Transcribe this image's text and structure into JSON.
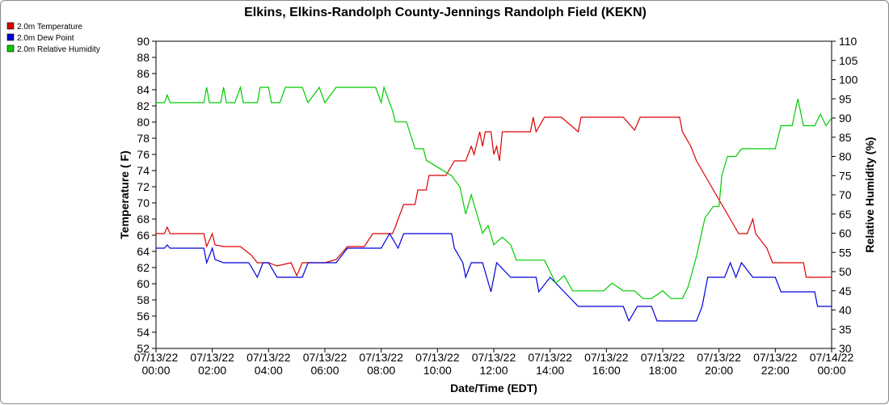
{
  "chart_data": {
    "type": "line",
    "title": "Elkins, Elkins-Randolph County-Jennings Randolph Field (KEKN)",
    "xlabel": "Date/Time (EDT)",
    "ylabel": "Temperature ( F)",
    "y2label": "Relative Humidity (%)",
    "ylim": [
      52,
      90
    ],
    "y2lim": [
      30,
      110
    ],
    "grid": false,
    "legend": "top-left",
    "x_ticks": [
      [
        "07/13/22",
        "00:00"
      ],
      [
        "07/13/22",
        "02:00"
      ],
      [
        "07/13/22",
        "04:00"
      ],
      [
        "07/13/22",
        "06:00"
      ],
      [
        "07/13/22",
        "08:00"
      ],
      [
        "07/13/22",
        "10:00"
      ],
      [
        "07/13/22",
        "12:00"
      ],
      [
        "07/13/22",
        "14:00"
      ],
      [
        "07/13/22",
        "16:00"
      ],
      [
        "07/13/22",
        "18:00"
      ],
      [
        "07/13/22",
        "20:00"
      ],
      [
        "07/13/22",
        "22:00"
      ],
      [
        "07/14/22",
        "00:00"
      ]
    ],
    "y_ticks": [
      52,
      54,
      56,
      58,
      60,
      62,
      64,
      66,
      68,
      70,
      72,
      74,
      76,
      78,
      80,
      82,
      84,
      86,
      88,
      90
    ],
    "y2_ticks": [
      30,
      35,
      40,
      45,
      50,
      55,
      60,
      65,
      70,
      75,
      80,
      85,
      90,
      95,
      100,
      105,
      110
    ],
    "series": [
      {
        "name": "2.0m Temperature",
        "color": "#dd0000",
        "axis": "left",
        "points": [
          [
            0,
            66.2
          ],
          [
            0.3,
            66.2
          ],
          [
            0.4,
            67
          ],
          [
            0.5,
            66.2
          ],
          [
            1.7,
            66.2
          ],
          [
            1.8,
            64.6
          ],
          [
            2.0,
            66.2
          ],
          [
            2.1,
            64.8
          ],
          [
            2.4,
            64.6
          ],
          [
            3.0,
            64.6
          ],
          [
            3.4,
            63.5
          ],
          [
            3.6,
            62.6
          ],
          [
            4.0,
            62.6
          ],
          [
            4.3,
            62.2
          ],
          [
            4.8,
            62.6
          ],
          [
            5.0,
            61.0
          ],
          [
            5.2,
            62.6
          ],
          [
            6.0,
            62.6
          ],
          [
            6.4,
            63.0
          ],
          [
            6.8,
            64.6
          ],
          [
            7.4,
            64.6
          ],
          [
            7.7,
            66.2
          ],
          [
            8.4,
            66.2
          ],
          [
            8.5,
            67
          ],
          [
            8.6,
            68
          ],
          [
            8.8,
            69.8
          ],
          [
            9.2,
            69.8
          ],
          [
            9.3,
            71.6
          ],
          [
            9.6,
            71.6
          ],
          [
            9.7,
            73.4
          ],
          [
            10.3,
            73.4
          ],
          [
            10.6,
            75.2
          ],
          [
            11.0,
            75.2
          ],
          [
            11.2,
            77
          ],
          [
            11.3,
            76
          ],
          [
            11.5,
            78.8
          ],
          [
            11.6,
            77
          ],
          [
            11.7,
            78.8
          ],
          [
            11.9,
            78.8
          ],
          [
            12.0,
            76
          ],
          [
            12.1,
            77
          ],
          [
            12.2,
            75.2
          ],
          [
            12.3,
            78.8
          ],
          [
            13.3,
            78.8
          ],
          [
            13.4,
            80.6
          ],
          [
            13.5,
            78.8
          ],
          [
            13.8,
            80.6
          ],
          [
            14.4,
            80.6
          ],
          [
            15.0,
            78.8
          ],
          [
            15.1,
            80.6
          ],
          [
            16.6,
            80.6
          ],
          [
            17.0,
            79
          ],
          [
            17.2,
            80.6
          ],
          [
            17.6,
            80.6
          ],
          [
            18.6,
            80.6
          ],
          [
            18.7,
            78.8
          ],
          [
            19.0,
            77
          ],
          [
            19.2,
            75.2
          ],
          [
            19.5,
            73.4
          ],
          [
            19.8,
            71.6
          ],
          [
            20.1,
            69.8
          ],
          [
            20.4,
            68
          ],
          [
            20.7,
            66.2
          ],
          [
            21.0,
            66.2
          ],
          [
            21.2,
            68
          ],
          [
            21.3,
            66.2
          ],
          [
            21.7,
            64.4
          ],
          [
            21.9,
            62.6
          ],
          [
            23.0,
            62.6
          ],
          [
            23.1,
            60.8
          ],
          [
            24.0,
            60.8
          ]
        ]
      },
      {
        "name": "2.0m Dew Point",
        "color": "#0000dd",
        "axis": "left",
        "points": [
          [
            0,
            64.4
          ],
          [
            0.3,
            64.4
          ],
          [
            0.4,
            64.8
          ],
          [
            0.5,
            64.4
          ],
          [
            1.7,
            64.4
          ],
          [
            1.8,
            62.6
          ],
          [
            2.0,
            64.4
          ],
          [
            2.1,
            63.0
          ],
          [
            2.4,
            62.6
          ],
          [
            3.0,
            62.6
          ],
          [
            3.3,
            62.6
          ],
          [
            3.6,
            60.8
          ],
          [
            3.8,
            62.6
          ],
          [
            4.0,
            62.6
          ],
          [
            4.3,
            60.8
          ],
          [
            5.2,
            60.8
          ],
          [
            5.4,
            62.6
          ],
          [
            6.0,
            62.6
          ],
          [
            6.4,
            62.6
          ],
          [
            6.8,
            64.4
          ],
          [
            7.6,
            64.4
          ],
          [
            8.0,
            64.4
          ],
          [
            8.3,
            66.2
          ],
          [
            8.6,
            64.4
          ],
          [
            8.8,
            66.2
          ],
          [
            10.5,
            66.2
          ],
          [
            10.6,
            64.4
          ],
          [
            10.9,
            62.6
          ],
          [
            11.0,
            60.8
          ],
          [
            11.2,
            62.6
          ],
          [
            11.6,
            62.6
          ],
          [
            11.9,
            59.0
          ],
          [
            12.1,
            62.6
          ],
          [
            12.6,
            60.8
          ],
          [
            13.5,
            60.8
          ],
          [
            13.6,
            59.0
          ],
          [
            14.0,
            60.8
          ],
          [
            14.5,
            59.0
          ],
          [
            15.0,
            57.2
          ],
          [
            16.6,
            57.2
          ],
          [
            16.8,
            55.4
          ],
          [
            17.1,
            57.2
          ],
          [
            17.6,
            57.2
          ],
          [
            17.8,
            55.4
          ],
          [
            19.2,
            55.4
          ],
          [
            19.4,
            57.2
          ],
          [
            19.6,
            60.8
          ],
          [
            20.2,
            60.8
          ],
          [
            20.4,
            62.6
          ],
          [
            20.6,
            60.8
          ],
          [
            20.8,
            62.6
          ],
          [
            21.2,
            60.8
          ],
          [
            22.0,
            60.8
          ],
          [
            22.2,
            59.0
          ],
          [
            23.4,
            59.0
          ],
          [
            23.5,
            57.2
          ],
          [
            24.0,
            57.2
          ]
        ]
      },
      {
        "name": "2.0m Relative Humidity",
        "color": "#00cc00",
        "axis": "right",
        "points": [
          [
            0,
            94
          ],
          [
            0.3,
            94
          ],
          [
            0.4,
            96
          ],
          [
            0.5,
            94
          ],
          [
            1.7,
            94
          ],
          [
            1.8,
            98
          ],
          [
            1.9,
            94
          ],
          [
            2.3,
            94
          ],
          [
            2.4,
            98
          ],
          [
            2.5,
            94
          ],
          [
            2.8,
            94
          ],
          [
            3.0,
            98
          ],
          [
            3.1,
            94
          ],
          [
            3.6,
            94
          ],
          [
            3.7,
            98
          ],
          [
            4.0,
            98
          ],
          [
            4.1,
            94
          ],
          [
            4.4,
            94
          ],
          [
            4.6,
            98
          ],
          [
            5.2,
            98
          ],
          [
            5.4,
            94
          ],
          [
            5.8,
            98
          ],
          [
            6.0,
            94
          ],
          [
            6.4,
            98
          ],
          [
            7.4,
            98
          ],
          [
            7.8,
            98
          ],
          [
            8.0,
            94
          ],
          [
            8.1,
            98
          ],
          [
            8.3,
            94
          ],
          [
            8.4,
            92
          ],
          [
            8.5,
            89
          ],
          [
            8.9,
            89
          ],
          [
            9.2,
            82
          ],
          [
            9.5,
            82
          ],
          [
            9.6,
            79
          ],
          [
            10.5,
            75
          ],
          [
            10.8,
            72
          ],
          [
            11.0,
            65
          ],
          [
            11.2,
            70
          ],
          [
            11.4,
            65
          ],
          [
            11.6,
            60
          ],
          [
            11.8,
            62
          ],
          [
            12.0,
            57
          ],
          [
            12.3,
            59
          ],
          [
            12.6,
            57
          ],
          [
            12.8,
            53
          ],
          [
            13.8,
            53
          ],
          [
            14.0,
            50
          ],
          [
            14.2,
            47
          ],
          [
            14.5,
            49
          ],
          [
            14.8,
            45
          ],
          [
            15.2,
            45
          ],
          [
            15.5,
            45
          ],
          [
            15.9,
            45
          ],
          [
            16.2,
            47
          ],
          [
            16.6,
            45
          ],
          [
            17.0,
            45
          ],
          [
            17.3,
            43
          ],
          [
            17.6,
            43
          ],
          [
            18.0,
            45
          ],
          [
            18.3,
            43
          ],
          [
            18.7,
            43
          ],
          [
            18.9,
            46
          ],
          [
            19.2,
            54
          ],
          [
            19.5,
            64
          ],
          [
            19.8,
            67
          ],
          [
            20.0,
            67
          ],
          [
            20.1,
            75
          ],
          [
            20.3,
            80
          ],
          [
            20.6,
            80
          ],
          [
            20.8,
            82
          ],
          [
            21.2,
            82
          ],
          [
            21.6,
            82
          ],
          [
            21.8,
            82
          ],
          [
            22.0,
            82
          ],
          [
            22.2,
            88
          ],
          [
            22.6,
            88
          ],
          [
            22.8,
            95
          ],
          [
            23.0,
            88
          ],
          [
            23.4,
            88
          ],
          [
            23.6,
            91
          ],
          [
            23.8,
            88
          ],
          [
            24.0,
            90
          ]
        ]
      }
    ]
  }
}
